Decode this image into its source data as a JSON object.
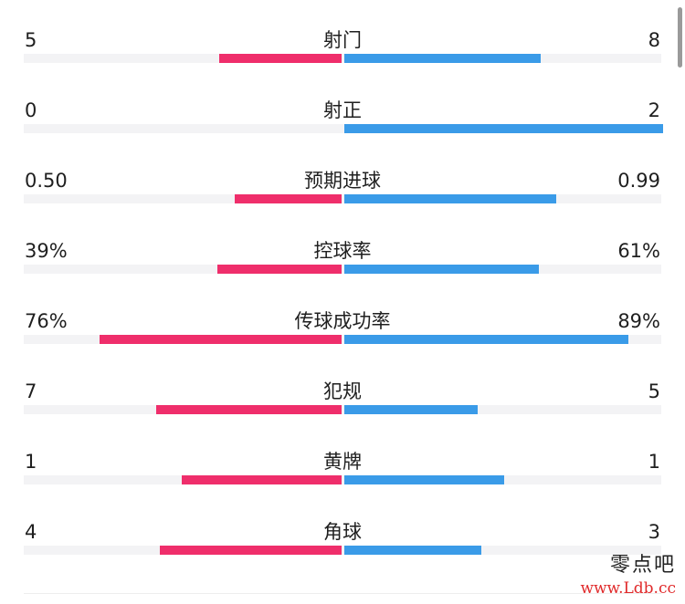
{
  "stats": [
    {
      "label": "射门",
      "left": "5",
      "right": "8",
      "left_ratio": 0.385,
      "right_ratio": 0.615
    },
    {
      "label": "射正",
      "left": "0",
      "right": "2",
      "left_ratio": 0.0,
      "right_ratio": 1.0
    },
    {
      "label": "预期进球",
      "left": "0.50",
      "right": "0.99",
      "left_ratio": 0.335,
      "right_ratio": 0.665
    },
    {
      "label": "控球率",
      "left": "39%",
      "right": "61%",
      "left_ratio": 0.39,
      "right_ratio": 0.61
    },
    {
      "label": "传球成功率",
      "left": "76%",
      "right": "89%",
      "left_ratio": 0.76,
      "right_ratio": 0.89
    },
    {
      "label": "犯规",
      "left": "7",
      "right": "5",
      "left_ratio": 0.583,
      "right_ratio": 0.417
    },
    {
      "label": "黄牌",
      "left": "1",
      "right": "1",
      "left_ratio": 0.5,
      "right_ratio": 0.5
    },
    {
      "label": "角球",
      "left": "4",
      "right": "3",
      "left_ratio": 0.571,
      "right_ratio": 0.429
    }
  ],
  "colors": {
    "left_team": "#ef2e6b",
    "right_team": "#3a9be8",
    "track": "#f3f3f5"
  },
  "watermark": {
    "name": "零点吧",
    "url": "www.Ldb.cc"
  }
}
